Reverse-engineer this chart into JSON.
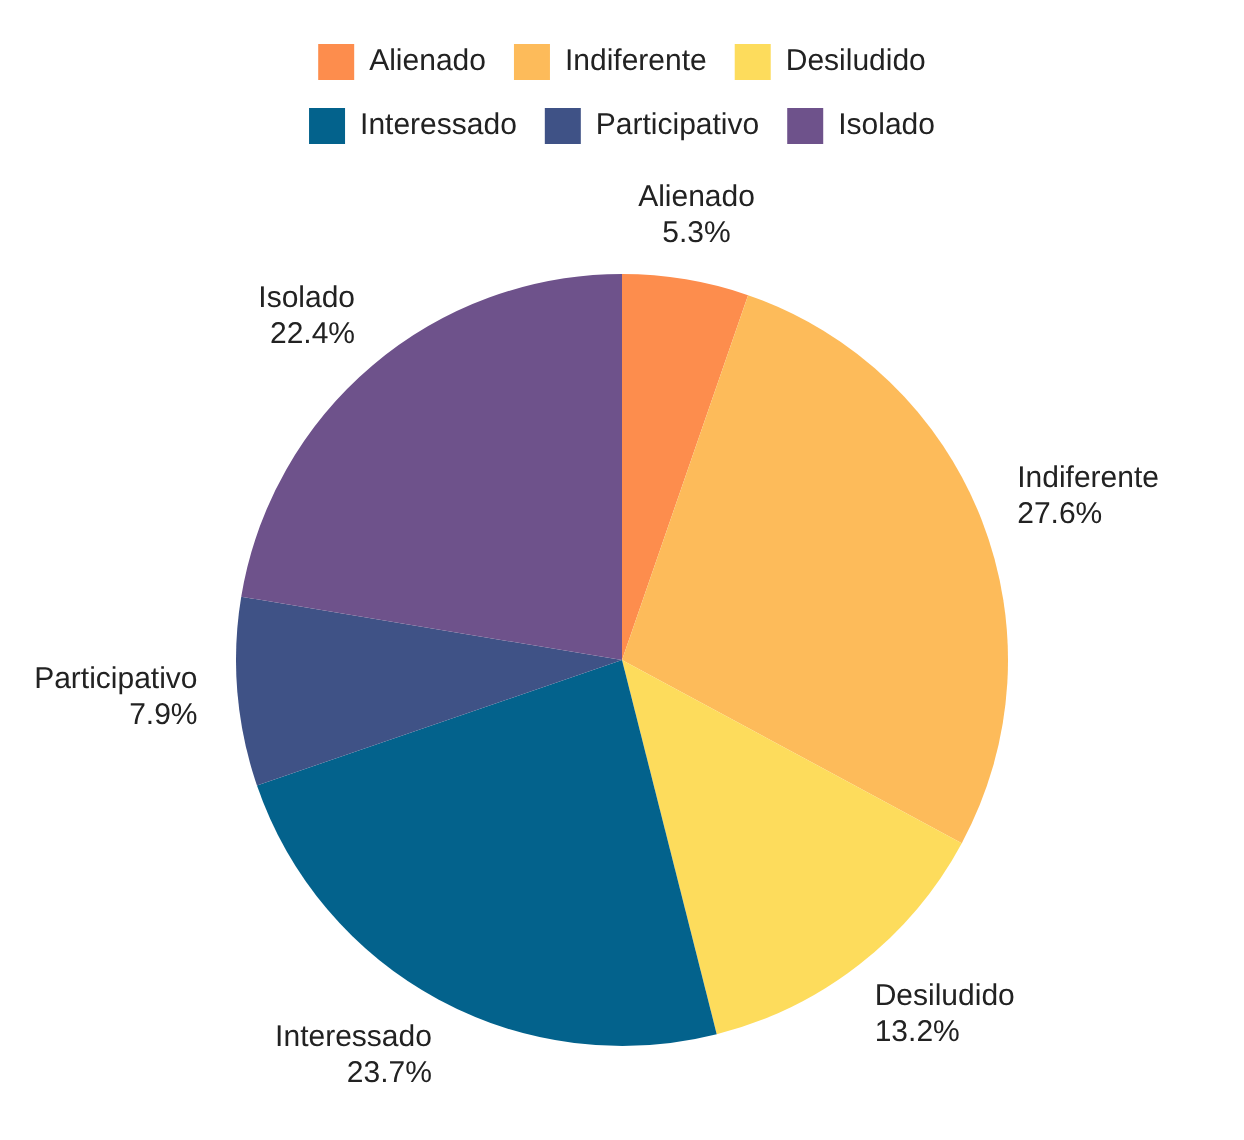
{
  "chart_data": {
    "type": "pie",
    "categories": [
      "Alienado",
      "Indiferente",
      "Desiludido",
      "Interessado",
      "Participativo",
      "Isolado"
    ],
    "values": [
      5.3,
      27.6,
      13.2,
      23.7,
      7.9,
      22.4
    ],
    "value_labels": [
      "5.3%",
      "27.6%",
      "13.2%",
      "23.7%",
      "7.9%",
      "22.4%"
    ],
    "colors": [
      "#fd8d4d",
      "#fdbb5a",
      "#fddc5c",
      "#03628c",
      "#3f5286",
      "#6e528b"
    ],
    "legend": "top"
  }
}
